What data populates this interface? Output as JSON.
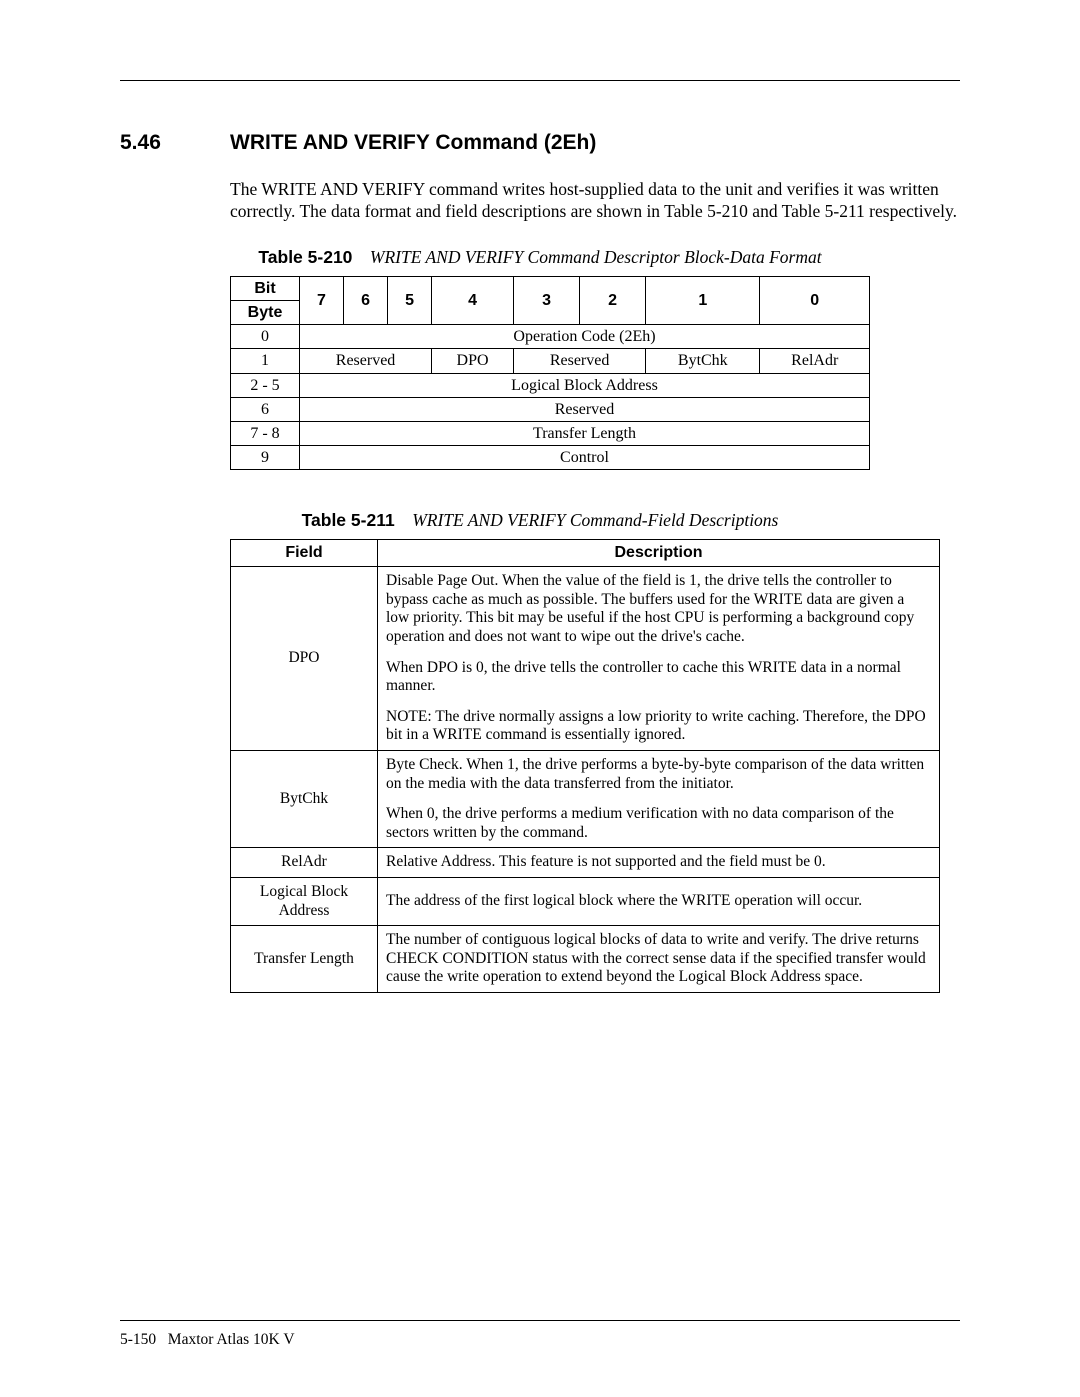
{
  "section": {
    "number": "5.46",
    "title": "WRITE AND VERIFY Command (2Eh)",
    "intro": "The WRITE AND VERIFY command writes host-supplied data to the unit and verifies it was written correctly. The data format and field descriptions are shown in Table 5-210 and Table 5-211 respectively."
  },
  "table1": {
    "caption_label": "Table 5-210",
    "caption_text": "WRITE AND VERIFY Command Descriptor Block-Data Format",
    "bit_label": "Bit",
    "byte_label": "Byte",
    "bit_cols": [
      "7",
      "6",
      "5",
      "4",
      "3",
      "2",
      "1",
      "0"
    ],
    "rows": {
      "r0_byte": "0",
      "r0_span": "Operation Code (2Eh)",
      "r1_byte": "1",
      "r1_reserved": "Reserved",
      "r1_dpo": "DPO",
      "r1_reserved2": "Reserved",
      "r1_bytchk": "BytChk",
      "r1_reladr": "RelAdr",
      "r2_byte": "2 - 5",
      "r2_span": "Logical Block Address",
      "r3_byte": "6",
      "r3_span": "Reserved",
      "r4_byte": "7 - 8",
      "r4_span": "Transfer Length",
      "r5_byte": "9",
      "r5_span": "Control"
    }
  },
  "table2": {
    "caption_label": "Table 5-211",
    "caption_text": "WRITE AND VERIFY Command-Field Descriptions",
    "col_field": "Field",
    "col_desc": "Description",
    "rows": {
      "dpo_field": "DPO",
      "dpo_p1": "Disable Page Out. When the value of the field is 1, the drive tells the controller to bypass cache as much as possible. The buffers used for the WRITE data are given a low priority. This bit may be useful if the host CPU is performing a background copy operation and does not want to wipe out the drive's cache.",
      "dpo_p2": "When DPO is 0, the drive tells the controller to cache this WRITE data in a normal manner.",
      "dpo_p3": "NOTE: The drive normally assigns a low priority to write caching. Therefore, the DPO bit in a WRITE command is essentially ignored.",
      "bytchk_field": "BytChk",
      "bytchk_p1": "Byte Check. When 1, the drive performs a byte-by-byte comparison of the data written on the media with the data transferred from the initiator.",
      "bytchk_p2": "When 0, the drive performs a medium verification with no data comparison of the sectors written by the command.",
      "reladr_field": "RelAdr",
      "reladr_desc": "Relative Address. This feature is not supported and the field must be 0.",
      "lba_field": "Logical Block Address",
      "lba_desc": "The address of the first logical block where the WRITE operation will occur.",
      "tl_field": "Transfer Length",
      "tl_desc": "The number of contiguous logical blocks of data to write and verify. The drive returns CHECK CONDITION status with the correct sense data if the specified transfer would cause the write operation to extend beyond the Logical Block Address space."
    }
  },
  "footer": {
    "page": "5-150",
    "doc": "Maxtor Atlas 10K V"
  }
}
